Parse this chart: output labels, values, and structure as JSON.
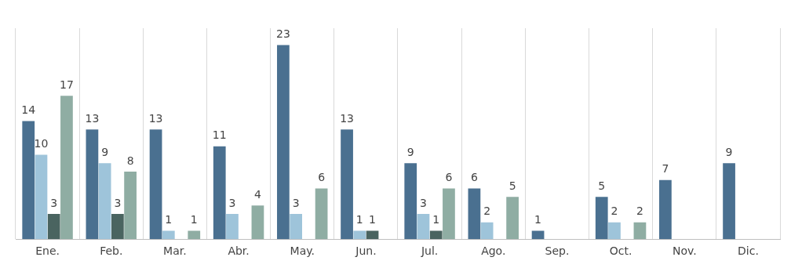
{
  "chart_data": {
    "type": "bar",
    "categories": [
      "Ene.",
      "Feb.",
      "Mar.",
      "Abr.",
      "May.",
      "Jun.",
      "Jul.",
      "Ago.",
      "Sep.",
      "Oct.",
      "Nov.",
      "Dic."
    ],
    "series": [
      {
        "color": "#4a7090",
        "values": [
          14,
          13,
          13,
          11,
          23,
          13,
          9,
          6,
          1,
          5,
          7,
          9
        ]
      },
      {
        "color": "#9ec4da",
        "values": [
          10,
          9,
          1,
          3,
          3,
          1,
          3,
          2,
          null,
          2,
          null,
          null
        ]
      },
      {
        "color": "#4a6460",
        "values": [
          3,
          3,
          null,
          null,
          null,
          1,
          1,
          null,
          null,
          null,
          null,
          null
        ]
      },
      {
        "color": "#8fada3",
        "values": [
          17,
          8,
          1,
          4,
          6,
          null,
          6,
          5,
          null,
          2,
          null,
          null
        ]
      }
    ],
    "data_labels": true,
    "grid": "x",
    "legend": false
  }
}
